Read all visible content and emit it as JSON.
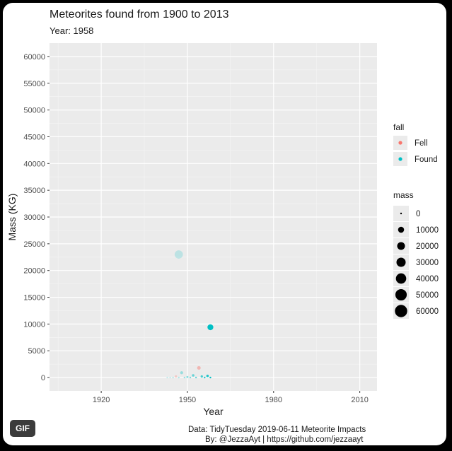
{
  "chart_data": {
    "type": "scatter",
    "title": "Meteorites found from 1900 to 2013",
    "subtitle": "Year: 1958",
    "xlabel": "Year",
    "ylabel": "Mass (KG)",
    "xlim": [
      1902,
      2016
    ],
    "ylim": [
      -2500,
      62500
    ],
    "xticks": [
      1920,
      1950,
      1980,
      2010
    ],
    "yticks": [
      0,
      5000,
      10000,
      15000,
      20000,
      25000,
      30000,
      35000,
      40000,
      45000,
      50000,
      55000,
      60000
    ],
    "grid": true,
    "legend_position": "right",
    "colors": {
      "Fell": "#f8766d",
      "Found": "#00bfc4"
    },
    "legend": {
      "fall": {
        "title": "fall",
        "entries": [
          "Fell",
          "Found"
        ]
      },
      "mass": {
        "title": "mass",
        "entries": [
          0,
          10000,
          20000,
          30000,
          40000,
          50000,
          60000
        ]
      }
    },
    "points": [
      {
        "x": 1958,
        "y": 9400,
        "fall": "Found",
        "alpha": 1.0
      },
      {
        "x": 1958,
        "y": 0,
        "fall": "Found",
        "alpha": 1.0
      },
      {
        "x": 1957,
        "y": 300,
        "fall": "Found",
        "alpha": 0.9
      },
      {
        "x": 1956,
        "y": 0,
        "fall": "Found",
        "alpha": 0.85
      },
      {
        "x": 1955,
        "y": 200,
        "fall": "Found",
        "alpha": 0.7
      },
      {
        "x": 1954,
        "y": 1800,
        "fall": "Fell",
        "alpha": 0.45
      },
      {
        "x": 1953,
        "y": 0,
        "fall": "Found",
        "alpha": 0.6
      },
      {
        "x": 1952,
        "y": 400,
        "fall": "Found",
        "alpha": 0.55
      },
      {
        "x": 1951,
        "y": 0,
        "fall": "Found",
        "alpha": 0.5
      },
      {
        "x": 1950,
        "y": 100,
        "fall": "Found",
        "alpha": 0.45
      },
      {
        "x": 1949,
        "y": 0,
        "fall": "Found",
        "alpha": 0.4
      },
      {
        "x": 1948,
        "y": 900,
        "fall": "Found",
        "alpha": 0.35
      },
      {
        "x": 1947,
        "y": 0,
        "fall": "Found",
        "alpha": 0.3
      },
      {
        "x": 1946,
        "y": 200,
        "fall": "Fell",
        "alpha": 0.3
      },
      {
        "x": 1945,
        "y": 0,
        "fall": "Found",
        "alpha": 0.25
      },
      {
        "x": 1944,
        "y": 0,
        "fall": "Found",
        "alpha": 0.2
      },
      {
        "x": 1943,
        "y": 0,
        "fall": "Found",
        "alpha": 0.2
      },
      {
        "x": 1947,
        "y": 23000,
        "fall": "Found",
        "alpha": 0.2
      }
    ]
  },
  "credits": {
    "line1": "Data: TidyTuesday 2019-06-11 Meteorite Impacts",
    "line2": "By: @JezzaAyt | https://github.com/jezzaayt"
  },
  "badge": {
    "label": "GIF"
  }
}
